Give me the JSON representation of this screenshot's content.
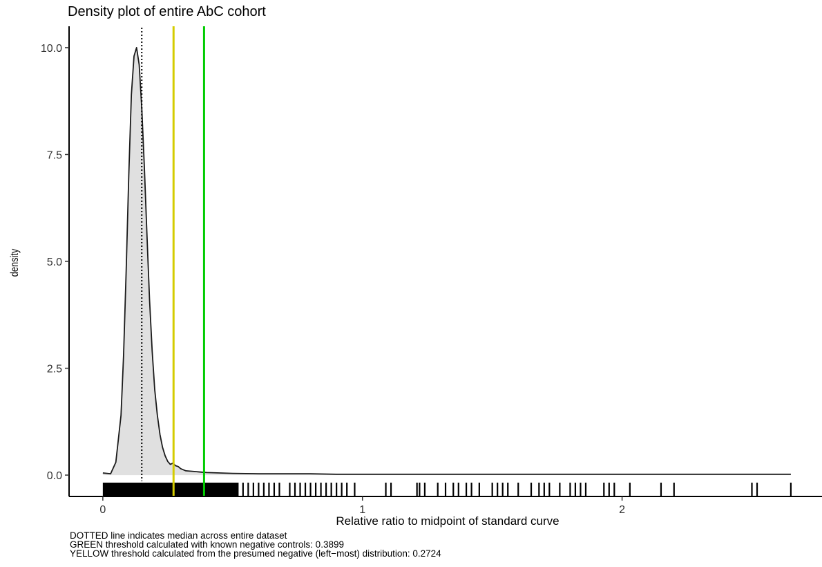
{
  "chart_data": {
    "type": "area",
    "title": "Density plot of entire AbC cohort",
    "xlabel": "Relative ratio to midpoint of standard curve",
    "ylabel": "density",
    "xlim": [
      -0.13,
      2.77
    ],
    "ylim": [
      -0.5,
      10.5
    ],
    "x_ticks": [
      0,
      1,
      2
    ],
    "x_tick_labels": [
      "0",
      "1",
      "2"
    ],
    "y_ticks": [
      0.0,
      2.5,
      5.0,
      7.5,
      10.0
    ],
    "y_tick_labels": [
      "0.0",
      "2.5",
      "5.0",
      "7.5",
      "10.0"
    ],
    "grid": false,
    "density_curve": {
      "x": [
        0.0,
        0.03,
        0.05,
        0.07,
        0.08,
        0.09,
        0.1,
        0.11,
        0.12,
        0.13,
        0.14,
        0.15,
        0.16,
        0.17,
        0.18,
        0.19,
        0.2,
        0.21,
        0.22,
        0.23,
        0.24,
        0.25,
        0.26,
        0.27,
        0.28,
        0.29,
        0.3,
        0.32,
        0.34,
        0.36,
        0.38,
        0.4,
        0.45,
        0.5,
        0.6,
        0.7,
        0.8,
        0.9,
        1.0,
        1.2,
        1.4,
        1.6,
        1.8,
        2.0,
        2.2,
        2.4,
        2.5,
        2.6,
        2.65
      ],
      "y": [
        0.05,
        0.03,
        0.3,
        1.4,
        2.8,
        4.8,
        7.0,
        8.9,
        9.8,
        10.0,
        9.6,
        8.6,
        7.2,
        5.6,
        4.1,
        2.9,
        2.0,
        1.4,
        0.95,
        0.65,
        0.45,
        0.32,
        0.25,
        0.28,
        0.22,
        0.2,
        0.15,
        0.1,
        0.09,
        0.08,
        0.07,
        0.06,
        0.05,
        0.04,
        0.03,
        0.03,
        0.03,
        0.02,
        0.02,
        0.02,
        0.02,
        0.02,
        0.02,
        0.02,
        0.02,
        0.02,
        0.02,
        0.02,
        0.02
      ]
    },
    "reference_lines": [
      {
        "name": "median",
        "x": 0.15,
        "color": "#000000",
        "style": "dotted"
      },
      {
        "name": "yellow-threshold",
        "x": 0.2724,
        "color": "#d4cc00",
        "style": "solid"
      },
      {
        "name": "green-threshold",
        "x": 0.3899,
        "color": "#00cc00",
        "style": "solid"
      }
    ],
    "rug_dense_range": [
      0.0,
      0.52
    ],
    "rug_x": [
      0.5,
      0.52,
      0.54,
      0.56,
      0.58,
      0.6,
      0.62,
      0.64,
      0.66,
      0.68,
      0.72,
      0.74,
      0.76,
      0.78,
      0.8,
      0.82,
      0.84,
      0.86,
      0.88,
      0.9,
      0.92,
      0.94,
      0.97,
      1.09,
      1.11,
      1.21,
      1.22,
      1.24,
      1.29,
      1.32,
      1.35,
      1.37,
      1.4,
      1.42,
      1.45,
      1.5,
      1.52,
      1.54,
      1.56,
      1.6,
      1.65,
      1.68,
      1.7,
      1.72,
      1.76,
      1.8,
      1.82,
      1.84,
      1.86,
      1.93,
      1.95,
      1.97,
      2.03,
      2.15,
      2.2,
      2.5,
      2.52,
      2.65
    ],
    "curve_color": "#1a1a1a",
    "fill_color": "#e0e0e0"
  },
  "caption": {
    "line1": "DOTTED line indicates median across entire dataset",
    "line2": "GREEN threshold calculated with known negative controls: 0.3899",
    "line3": "YELLOW threshold calculated from the presumed negative (left−most) distribution: 0.2724"
  }
}
